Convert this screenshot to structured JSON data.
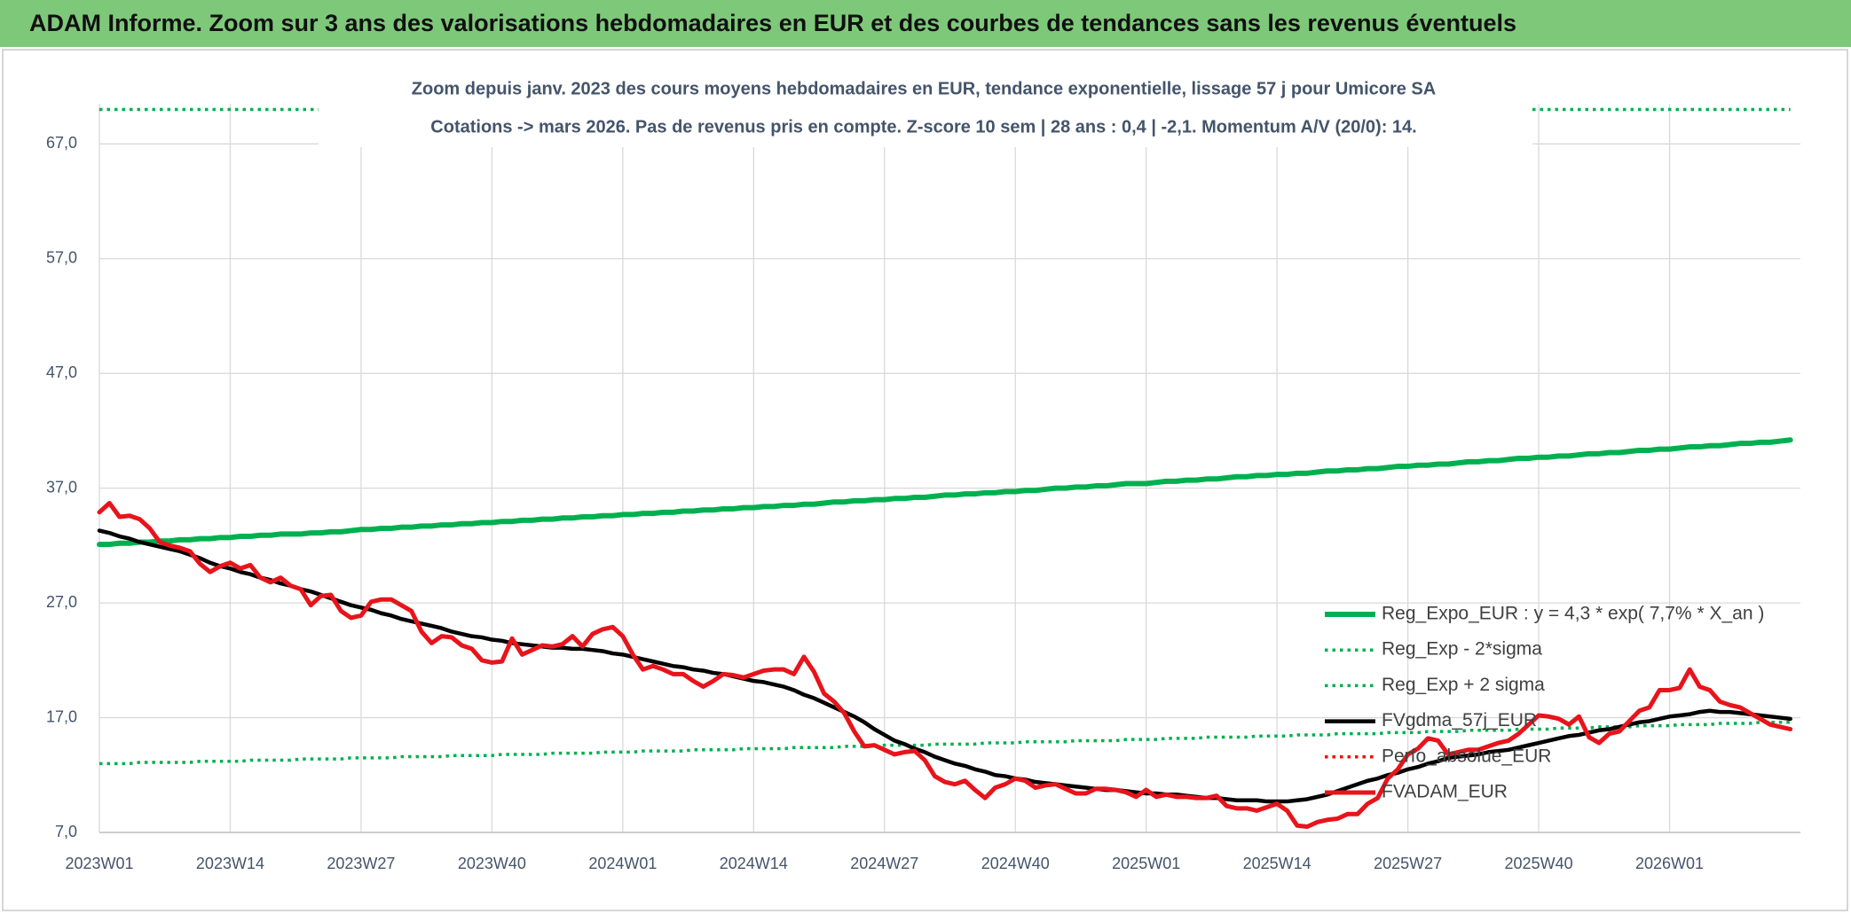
{
  "header": {
    "title": "ADAM Informe. Zoom sur 3 ans des valorisations hebdomadaires en EUR et des courbes de tendances sans les revenus éventuels"
  },
  "chart_data": {
    "type": "line",
    "title": "Zoom depuis janv. 2023 des cours moyens hebdomadaires en EUR, tendance exponentielle, lissage 57 j pour Umicore SA",
    "subtitle": "Cotations -> mars 2026. Pas de revenus pris en compte. Z-score 10 sem | 28 ans : 0,4 | -2,1. Momentum A/V (20/0): 14.",
    "categories": [
      "2023W01",
      null,
      null,
      null,
      null,
      null,
      null,
      null,
      null,
      null,
      null,
      null,
      null,
      "2023W14",
      null,
      null,
      null,
      null,
      null,
      null,
      null,
      null,
      null,
      null,
      null,
      null,
      "2023W27",
      null,
      null,
      null,
      null,
      null,
      null,
      null,
      null,
      null,
      null,
      null,
      null,
      "2023W40",
      null,
      null,
      null,
      null,
      null,
      null,
      null,
      null,
      null,
      null,
      null,
      null,
      "2024W01",
      null,
      null,
      null,
      null,
      null,
      null,
      null,
      null,
      null,
      null,
      null,
      null,
      "2024W14",
      null,
      null,
      null,
      null,
      null,
      null,
      null,
      null,
      null,
      null,
      null,
      null,
      "2024W27",
      null,
      null,
      null,
      null,
      null,
      null,
      null,
      null,
      null,
      null,
      null,
      null,
      "2024W40",
      null,
      null,
      null,
      null,
      null,
      null,
      null,
      null,
      null,
      null,
      null,
      null,
      "2025W01",
      null,
      null,
      null,
      null,
      null,
      null,
      null,
      null,
      null,
      null,
      null,
      null,
      "2025W14",
      null,
      null,
      null,
      null,
      null,
      null,
      null,
      null,
      null,
      null,
      null,
      null,
      "2025W27",
      null,
      null,
      null,
      null,
      null,
      null,
      null,
      null,
      null,
      null,
      null,
      null,
      "2025W40",
      null,
      null,
      null,
      null,
      null,
      null,
      null,
      null,
      null,
      null,
      null,
      null,
      "2026W01",
      null,
      null,
      null,
      null,
      null,
      null,
      null,
      null,
      null,
      null,
      null,
      null
    ],
    "ylim": [
      7,
      70.5
    ],
    "yticks": [
      {
        "value": 7,
        "label": "7,0"
      },
      {
        "value": 17,
        "label": "17,0"
      },
      {
        "value": 27,
        "label": "27,0"
      },
      {
        "value": 37,
        "label": "37,0"
      },
      {
        "value": 47,
        "label": "47,0"
      },
      {
        "value": 57,
        "label": "57,0"
      },
      {
        "value": 67,
        "label": "67,0"
      }
    ],
    "grid": true,
    "series": [
      {
        "name": "Reg_Expo_EUR : y = 4,3 * exp( 7,7% *  X_an )",
        "color": "#00b050",
        "dashed": false,
        "width": 6,
        "values": [
          32.1,
          32.1,
          32.2,
          32.2,
          32.3,
          32.3,
          32.4,
          32.4,
          32.5,
          32.5,
          32.6,
          32.6,
          32.7,
          32.7,
          32.8,
          32.8,
          32.9,
          32.9,
          33.0,
          33.0,
          33.0,
          33.1,
          33.1,
          33.2,
          33.2,
          33.3,
          33.4,
          33.4,
          33.5,
          33.5,
          33.6,
          33.6,
          33.7,
          33.7,
          33.8,
          33.8,
          33.9,
          33.9,
          34.0,
          34.0,
          34.1,
          34.1,
          34.2,
          34.2,
          34.3,
          34.3,
          34.4,
          34.4,
          34.5,
          34.5,
          34.6,
          34.6,
          34.7,
          34.7,
          34.8,
          34.8,
          34.9,
          34.9,
          35.0,
          35.0,
          35.1,
          35.1,
          35.2,
          35.2,
          35.3,
          35.3,
          35.4,
          35.4,
          35.5,
          35.5,
          35.6,
          35.6,
          35.7,
          35.8,
          35.8,
          35.9,
          35.9,
          36.0,
          36.0,
          36.1,
          36.1,
          36.2,
          36.2,
          36.3,
          36.4,
          36.4,
          36.5,
          36.5,
          36.6,
          36.6,
          36.7,
          36.7,
          36.8,
          36.8,
          36.9,
          37.0,
          37.0,
          37.1,
          37.1,
          37.2,
          37.2,
          37.3,
          37.4,
          37.4,
          37.4,
          37.5,
          37.6,
          37.6,
          37.7,
          37.7,
          37.8,
          37.8,
          37.9,
          38.0,
          38.0,
          38.1,
          38.1,
          38.2,
          38.2,
          38.3,
          38.3,
          38.4,
          38.5,
          38.5,
          38.6,
          38.6,
          38.7,
          38.7,
          38.8,
          38.9,
          38.9,
          39.0,
          39.0,
          39.1,
          39.1,
          39.2,
          39.3,
          39.3,
          39.4,
          39.4,
          39.5,
          39.6,
          39.6,
          39.7,
          39.7,
          39.8,
          39.8,
          39.9,
          40.0,
          40.0,
          40.1,
          40.1,
          40.2,
          40.3,
          40.3,
          40.4,
          40.4,
          40.5,
          40.6,
          40.6,
          40.7,
          40.7,
          40.8,
          40.9,
          40.9,
          41.0,
          41.0,
          41.1,
          41.2
        ]
      },
      {
        "name": "Reg_Exp - 2*sigma",
        "color": "#00b050",
        "dashed": true,
        "width": 3.5,
        "values": [
          13.0,
          13.0,
          13.0,
          13.0,
          13.1,
          13.1,
          13.1,
          13.1,
          13.1,
          13.1,
          13.2,
          13.2,
          13.2,
          13.2,
          13.2,
          13.3,
          13.3,
          13.3,
          13.3,
          13.3,
          13.4,
          13.4,
          13.4,
          13.4,
          13.4,
          13.5,
          13.5,
          13.5,
          13.5,
          13.5,
          13.6,
          13.6,
          13.6,
          13.6,
          13.6,
          13.7,
          13.7,
          13.7,
          13.7,
          13.7,
          13.8,
          13.8,
          13.8,
          13.8,
          13.8,
          13.9,
          13.9,
          13.9,
          13.9,
          13.9,
          14.0,
          14.0,
          14.0,
          14.0,
          14.1,
          14.1,
          14.1,
          14.1,
          14.1,
          14.2,
          14.2,
          14.2,
          14.2,
          14.2,
          14.3,
          14.3,
          14.3,
          14.3,
          14.3,
          14.4,
          14.4,
          14.4,
          14.4,
          14.4,
          14.5,
          14.5,
          14.5,
          14.5,
          14.6,
          14.6,
          14.6,
          14.6,
          14.6,
          14.7,
          14.7,
          14.7,
          14.7,
          14.7,
          14.8,
          14.8,
          14.8,
          14.8,
          14.9,
          14.9,
          14.9,
          14.9,
          14.9,
          15.0,
          15.0,
          15.0,
          15.0,
          15.0,
          15.1,
          15.1,
          15.1,
          15.1,
          15.2,
          15.2,
          15.2,
          15.2,
          15.3,
          15.3,
          15.3,
          15.3,
          15.3,
          15.4,
          15.4,
          15.4,
          15.4,
          15.5,
          15.5,
          15.5,
          15.5,
          15.6,
          15.6,
          15.6,
          15.6,
          15.6,
          15.7,
          15.7,
          15.7,
          15.7,
          15.8,
          15.8,
          15.8,
          15.8,
          15.9,
          15.9,
          15.9,
          15.9,
          15.9,
          16.0,
          16.0,
          16.0,
          16.0,
          16.1,
          16.1,
          16.1,
          16.1,
          16.2,
          16.2,
          16.2,
          16.2,
          16.3,
          16.3,
          16.3,
          16.3,
          16.4,
          16.4,
          16.4,
          16.4,
          16.5,
          16.5,
          16.5,
          16.5,
          16.6,
          16.6,
          16.6,
          16.6
        ]
      },
      {
        "name": "Reg_Exp + 2 sigma",
        "color": "#00b050",
        "dashed": true,
        "width": 3.5,
        "values": [
          70,
          70,
          70,
          70,
          70,
          70,
          70,
          70,
          70,
          70,
          70,
          70,
          70,
          70,
          70,
          70,
          70,
          70,
          70,
          70,
          70,
          70,
          70,
          70,
          70,
          70,
          70,
          70,
          70,
          70,
          70,
          70,
          70,
          70,
          70,
          70,
          70,
          70,
          70,
          70,
          70,
          70,
          70,
          70,
          70,
          70,
          70,
          70,
          70,
          70,
          70,
          70,
          70,
          70,
          70,
          70,
          70,
          70,
          70,
          70,
          70,
          70,
          70,
          70,
          70,
          70,
          70,
          70,
          70,
          70,
          70,
          70,
          70,
          70,
          70,
          70,
          70,
          70,
          70,
          70,
          70,
          70,
          70,
          70,
          70,
          70,
          70,
          70,
          70,
          70,
          70,
          70,
          70,
          70,
          70,
          70,
          70,
          70,
          70,
          70,
          70,
          70,
          70,
          70,
          70,
          70,
          70,
          70,
          70,
          70,
          70,
          70,
          70,
          70,
          70,
          70,
          70,
          70,
          70,
          70,
          70,
          70,
          70,
          70,
          70,
          70,
          70,
          70,
          70,
          70,
          70,
          70,
          70,
          70,
          70,
          70,
          70,
          70,
          70,
          70,
          70,
          70,
          70,
          70,
          70,
          70,
          70,
          70,
          70,
          70,
          70,
          70,
          70,
          70,
          70,
          70,
          70,
          70,
          70,
          70,
          70,
          70,
          70,
          70,
          70,
          70,
          70,
          70,
          70
        ]
      },
      {
        "name": "FVgdma_57j_EUR",
        "color": "#000000",
        "dashed": false,
        "width": 4.5,
        "values": [
          33.3,
          33.1,
          32.8,
          32.6,
          32.3,
          32.1,
          31.9,
          31.7,
          31.5,
          31.2,
          30.9,
          30.5,
          30.2,
          30.0,
          29.7,
          29.5,
          29.2,
          29.0,
          28.7,
          28.5,
          28.2,
          28.0,
          27.7,
          27.4,
          27.1,
          26.8,
          26.6,
          26.4,
          26.1,
          25.9,
          25.6,
          25.4,
          25.2,
          25.0,
          24.8,
          24.5,
          24.3,
          24.1,
          24.0,
          23.8,
          23.7,
          23.5,
          23.4,
          23.3,
          23.2,
          23.1,
          23.1,
          23.0,
          23.0,
          22.9,
          22.8,
          22.6,
          22.5,
          22.3,
          22.1,
          21.9,
          21.7,
          21.5,
          21.4,
          21.2,
          21.1,
          20.9,
          20.8,
          20.6,
          20.4,
          20.2,
          20.1,
          19.9,
          19.7,
          19.4,
          19.0,
          18.7,
          18.3,
          17.9,
          17.5,
          17.1,
          16.6,
          16.0,
          15.5,
          15.0,
          14.7,
          14.3,
          14.0,
          13.6,
          13.3,
          13.0,
          12.8,
          12.5,
          12.3,
          12.0,
          11.9,
          11.7,
          11.6,
          11.4,
          11.3,
          11.2,
          11.1,
          11.0,
          10.9,
          10.8,
          10.7,
          10.7,
          10.6,
          10.5,
          10.4,
          10.4,
          10.3,
          10.3,
          10.2,
          10.1,
          10.0,
          10.0,
          9.9,
          9.8,
          9.8,
          9.8,
          9.7,
          9.7,
          9.7,
          9.8,
          9.9,
          10.1,
          10.3,
          10.6,
          10.9,
          11.2,
          11.5,
          11.7,
          12.0,
          12.2,
          12.5,
          12.7,
          13.0,
          13.2,
          13.5,
          13.6,
          13.7,
          13.8,
          14.0,
          14.1,
          14.2,
          14.4,
          14.6,
          14.8,
          15.0,
          15.2,
          15.4,
          15.5,
          15.7,
          15.9,
          16.0,
          16.2,
          16.4,
          16.6,
          16.7,
          16.9,
          17.1,
          17.2,
          17.3,
          17.5,
          17.6,
          17.5,
          17.5,
          17.4,
          17.3,
          17.2,
          17.1,
          17.0,
          16.9
        ]
      },
      {
        "name": "Perfo_absolue_EUR",
        "color": "#ff0000",
        "dashed": true,
        "width": 3.5,
        "values": [
          null,
          null,
          null,
          null,
          null,
          null,
          null,
          null,
          null,
          null,
          null,
          null,
          null,
          null,
          null,
          null,
          null,
          null,
          null,
          null,
          null,
          null,
          null,
          null,
          null,
          null,
          null,
          null,
          null,
          null,
          null,
          null,
          null,
          null,
          null,
          null,
          null,
          null,
          null,
          null,
          null,
          null,
          null,
          null,
          null,
          null,
          null,
          null,
          null,
          null,
          null,
          null,
          null,
          null,
          null,
          null,
          null,
          null,
          null,
          null,
          null,
          null,
          null,
          null,
          null,
          null,
          null,
          null,
          null,
          null,
          null,
          null,
          null,
          null,
          null,
          null,
          null,
          null,
          null,
          null,
          null,
          null,
          null,
          null,
          null,
          null,
          null,
          null,
          null,
          null,
          null,
          null,
          null,
          null,
          null,
          null,
          null,
          null,
          null,
          null,
          null,
          null,
          null,
          null,
          null,
          null,
          null,
          null,
          null,
          null,
          null,
          null,
          null,
          null,
          null,
          null,
          null,
          null,
          null,
          null,
          null,
          null,
          null,
          null,
          null,
          null,
          null,
          null,
          null,
          null,
          null,
          null,
          null,
          null,
          null,
          null,
          null,
          null,
          null,
          null,
          null,
          null,
          null,
          null,
          null,
          null,
          null,
          null,
          null,
          null,
          null,
          null,
          null,
          null,
          null,
          null,
          null,
          null,
          null,
          null,
          null,
          null,
          null,
          null,
          null,
          null,
          null,
          null,
          null
        ]
      },
      {
        "name": "FVADAM_EUR",
        "color": "#e8141b",
        "dashed": false,
        "width": 5,
        "values": [
          34.9,
          35.7,
          34.5,
          34.6,
          34.3,
          33.5,
          32.3,
          32.0,
          31.8,
          31.5,
          30.4,
          29.7,
          30.2,
          30.5,
          30.0,
          30.3,
          29.2,
          28.8,
          29.2,
          28.5,
          28.2,
          26.8,
          27.6,
          27.7,
          26.3,
          25.7,
          25.9,
          27.1,
          27.3,
          27.3,
          26.8,
          26.3,
          24.5,
          23.5,
          24.1,
          24.0,
          23.3,
          23.0,
          22.0,
          21.8,
          21.9,
          23.9,
          22.5,
          22.9,
          23.3,
          23.2,
          23.4,
          24.1,
          23.2,
          24.3,
          24.7,
          24.9,
          24.1,
          22.5,
          21.2,
          21.5,
          21.2,
          20.8,
          20.8,
          20.2,
          19.7,
          20.2,
          20.8,
          20.7,
          20.5,
          20.8,
          21.1,
          21.2,
          21.2,
          20.8,
          22.3,
          21.0,
          19.1,
          18.4,
          17.4,
          15.8,
          14.5,
          14.6,
          14.2,
          13.8,
          14.0,
          14.1,
          13.3,
          11.9,
          11.4,
          11.2,
          11.5,
          10.7,
          10.0,
          10.9,
          11.2,
          11.7,
          11.5,
          10.9,
          11.1,
          11.2,
          10.8,
          10.4,
          10.4,
          10.8,
          10.8,
          10.7,
          10.5,
          10.1,
          10.7,
          10.1,
          10.3,
          10.1,
          10.1,
          10.0,
          10.0,
          10.2,
          9.3,
          9.1,
          9.1,
          8.9,
          9.2,
          9.5,
          8.9,
          7.6,
          7.5,
          7.9,
          8.1,
          8.2,
          8.6,
          8.6,
          9.5,
          10.0,
          11.7,
          12.5,
          13.8,
          14.3,
          15.2,
          15.0,
          13.8,
          14.0,
          14.2,
          14.2,
          14.5,
          14.8,
          15.0,
          15.6,
          16.4,
          17.2,
          17.1,
          16.9,
          16.4,
          17.1,
          15.3,
          14.8,
          15.6,
          15.8,
          16.7,
          17.6,
          17.9,
          19.4,
          19.4,
          19.6,
          21.2,
          19.7,
          19.4,
          18.4,
          18.1,
          17.9,
          17.4,
          16.9,
          16.4,
          16.2,
          16.0
        ]
      }
    ]
  }
}
